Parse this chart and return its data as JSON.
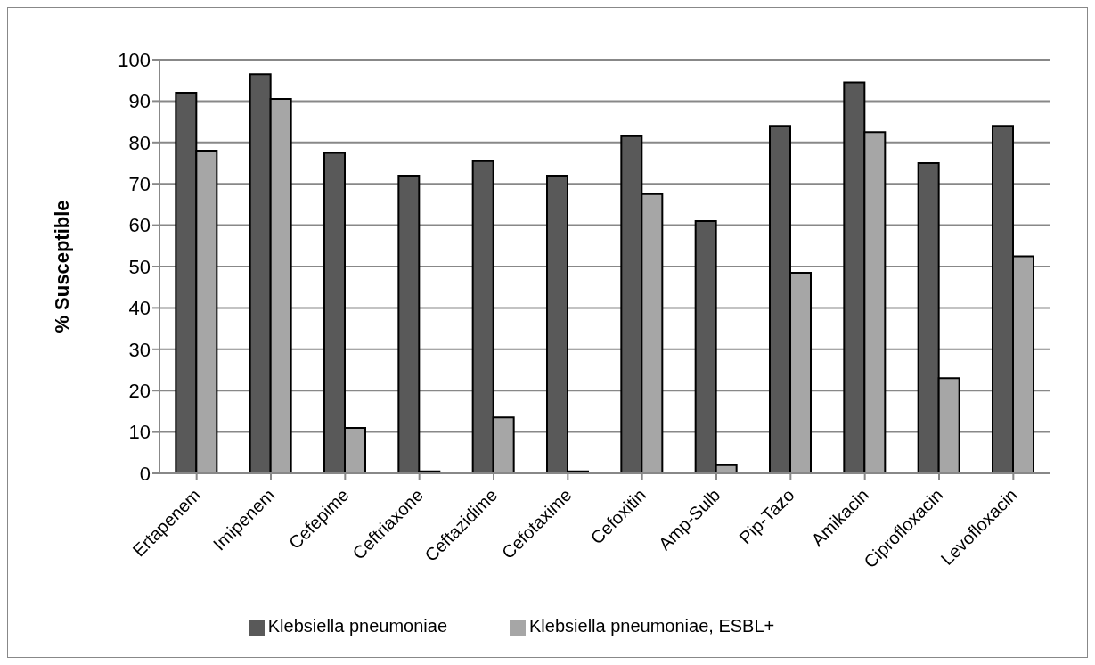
{
  "chart_data": {
    "type": "bar",
    "ylabel": "% Susceptible",
    "categories": [
      "Ertapenem",
      "Imipenem",
      "Cefepime",
      "Ceftriaxone",
      "Ceftazidime",
      "Cefotaxime",
      "Cefoxitin",
      "Amp-Sulb",
      "Pip-Tazo",
      "Amikacin",
      "Ciprofloxacin",
      "Levofloxacin"
    ],
    "series": [
      {
        "name": "Klebsiella pneumoniae",
        "color": "#595959",
        "values": [
          92,
          96.5,
          77.5,
          72,
          75.5,
          72,
          81.5,
          61,
          84,
          94.5,
          75,
          84
        ]
      },
      {
        "name": "Klebsiella pneumoniae, ESBL+",
        "color": "#a6a6a6",
        "values": [
          78,
          90.5,
          11,
          0.5,
          13.5,
          0.5,
          67.5,
          2,
          48.5,
          82.5,
          23,
          52.5
        ]
      }
    ],
    "ylim": [
      0,
      100
    ],
    "yticks": [
      0,
      10,
      20,
      30,
      40,
      50,
      60,
      70,
      80,
      90,
      100
    ],
    "grid": "y",
    "legend": "bottom"
  }
}
